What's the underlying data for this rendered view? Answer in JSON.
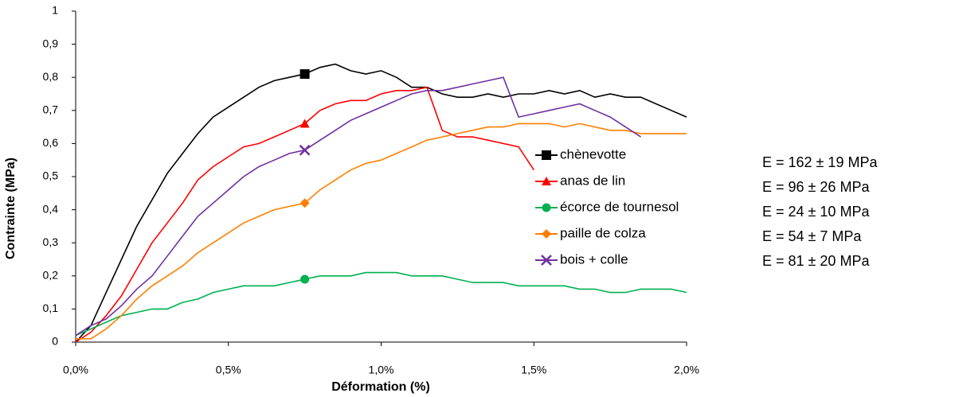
{
  "chart_data": {
    "type": "line",
    "xlabel": "Déformation (%)",
    "ylabel": "Contrainte (MPa)",
    "x": [
      0,
      0.05,
      0.1,
      0.15,
      0.2,
      0.25,
      0.3,
      0.35,
      0.4,
      0.45,
      0.5,
      0.55,
      0.6,
      0.65,
      0.7,
      0.75,
      0.8,
      0.85,
      0.9,
      0.95,
      1.0,
      1.05,
      1.1,
      1.15,
      1.2,
      1.25,
      1.3,
      1.35,
      1.4,
      1.45,
      1.5,
      1.55,
      1.6,
      1.65,
      1.7,
      1.75,
      1.8,
      1.85,
      1.9,
      1.95,
      2.0
    ],
    "series": [
      {
        "name": "chènevotte",
        "color": "#000000",
        "marker": "square",
        "values": [
          0,
          0.05,
          0.15,
          0.25,
          0.35,
          0.43,
          0.51,
          0.57,
          0.63,
          0.68,
          0.71,
          0.74,
          0.77,
          0.79,
          0.8,
          0.81,
          0.83,
          0.84,
          0.82,
          0.81,
          0.82,
          0.8,
          0.77,
          0.77,
          0.75,
          0.74,
          0.74,
          0.75,
          0.74,
          0.75,
          0.75,
          0.76,
          0.75,
          0.76,
          0.74,
          0.75,
          0.74,
          0.74,
          0.72,
          0.7,
          0.68
        ]
      },
      {
        "name": "anas de lin",
        "color": "#ff0000",
        "marker": "triangle",
        "values": [
          0,
          0.03,
          0.08,
          0.14,
          0.22,
          0.3,
          0.36,
          0.42,
          0.49,
          0.53,
          0.56,
          0.59,
          0.6,
          0.62,
          0.64,
          0.66,
          0.7,
          0.72,
          0.73,
          0.73,
          0.75,
          0.76,
          0.76,
          0.77,
          0.64,
          0.62,
          0.62,
          0.61,
          0.6,
          0.59,
          0.52,
          null,
          null,
          null,
          null,
          null,
          null,
          null,
          null,
          null,
          null
        ]
      },
      {
        "name": "écorce de tournesol",
        "color": "#00b050",
        "marker": "circle",
        "values": [
          0.02,
          0.04,
          0.06,
          0.08,
          0.09,
          0.1,
          0.1,
          0.12,
          0.13,
          0.15,
          0.16,
          0.17,
          0.17,
          0.17,
          0.18,
          0.19,
          0.2,
          0.2,
          0.2,
          0.21,
          0.21,
          0.21,
          0.2,
          0.2,
          0.2,
          0.19,
          0.18,
          0.18,
          0.18,
          0.17,
          0.17,
          0.17,
          0.17,
          0.16,
          0.16,
          0.15,
          0.15,
          0.16,
          0.16,
          0.16,
          0.15
        ]
      },
      {
        "name": "paille de colza",
        "color": "#ff7f00",
        "marker": "diamond",
        "values": [
          0.01,
          0.01,
          0.04,
          0.08,
          0.13,
          0.17,
          0.2,
          0.23,
          0.27,
          0.3,
          0.33,
          0.36,
          0.38,
          0.4,
          0.41,
          0.42,
          0.46,
          0.49,
          0.52,
          0.54,
          0.55,
          0.57,
          0.59,
          0.61,
          0.62,
          0.63,
          0.64,
          0.65,
          0.65,
          0.66,
          0.66,
          0.66,
          0.65,
          0.66,
          0.65,
          0.64,
          0.64,
          0.63,
          0.63,
          0.63,
          0.63
        ]
      },
      {
        "name": "bois + colle",
        "color": "#7030a0",
        "marker": "x",
        "values": [
          0.02,
          0.05,
          0.07,
          0.11,
          0.16,
          0.2,
          0.26,
          0.32,
          0.38,
          0.42,
          0.46,
          0.5,
          0.53,
          0.55,
          0.57,
          0.58,
          0.61,
          0.64,
          0.67,
          0.69,
          0.71,
          0.73,
          0.75,
          0.76,
          0.76,
          0.77,
          0.78,
          0.79,
          0.8,
          0.68,
          0.69,
          0.7,
          0.71,
          0.72,
          0.7,
          0.68,
          0.65,
          0.62,
          null,
          null,
          null
        ]
      }
    ],
    "xlim": [
      0,
      2.0
    ],
    "xticks": [
      {
        "value": 0,
        "label": "0,0%"
      },
      {
        "value": 0.5,
        "label": "0,5%"
      },
      {
        "value": 1.0,
        "label": "1,0%"
      },
      {
        "value": 1.5,
        "label": "1,5%"
      },
      {
        "value": 2.0,
        "label": "2,0%"
      }
    ],
    "ylim": [
      0,
      1
    ],
    "yticks": [
      0,
      {
        "value": 0.1,
        "label": "0,1"
      },
      {
        "value": 0.2,
        "label": "0,2"
      },
      {
        "value": 0.3,
        "label": "0,3"
      },
      {
        "value": 0.4,
        "label": "0,4"
      },
      {
        "value": 0.5,
        "label": "0,5"
      },
      {
        "value": 0.6,
        "label": "0,6"
      },
      {
        "value": 0.7,
        "label": "0,7"
      },
      {
        "value": 0.8,
        "label": "0,8"
      },
      {
        "value": 0.9,
        "label": "0,9"
      },
      1
    ],
    "grid": false,
    "legend": "right",
    "annotations": [
      "E = 162 ± 19 MPa",
      "E = 96 ± 26 MPa",
      "E = 24 ± 10 MPa",
      "E = 54 ± 7 MPa",
      "E = 81 ± 20 MPa"
    ]
  }
}
